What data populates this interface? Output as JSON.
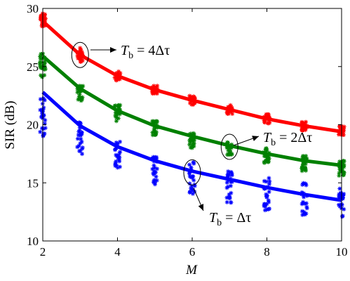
{
  "chart_data": {
    "type": "line",
    "xlabel": "M",
    "ylabel": "SIR (dB)",
    "xlim": [
      2,
      10
    ],
    "ylim": [
      10,
      30
    ],
    "xticks": [
      2,
      4,
      6,
      8,
      10
    ],
    "yticks": [
      10,
      15,
      20,
      25,
      30
    ],
    "x": [
      2,
      3,
      4,
      5,
      6,
      7,
      8,
      9,
      10
    ],
    "grid": false,
    "series": [
      {
        "color": "#ff0000",
        "values": [
          28.9,
          26.0,
          24.2,
          23.0,
          22.1,
          21.3,
          20.5,
          19.9,
          19.4
        ],
        "scatter": [
          [
            28.3,
            29.6
          ],
          [
            25.4,
            26.6
          ],
          [
            23.8,
            24.6
          ],
          [
            22.6,
            23.4
          ],
          [
            21.7,
            22.5
          ],
          [
            20.9,
            21.7
          ],
          [
            20.1,
            20.9
          ],
          [
            19.5,
            20.3
          ],
          [
            19.0,
            19.9
          ]
        ]
      },
      {
        "color": "#008000",
        "values": [
          25.9,
          23.1,
          21.2,
          19.9,
          19.0,
          18.2,
          17.5,
          16.9,
          16.5
        ],
        "scatter": [
          [
            24.1,
            26.2
          ],
          [
            21.9,
            23.5
          ],
          [
            20.3,
            21.7
          ],
          [
            19.0,
            20.4
          ],
          [
            18.0,
            19.3
          ],
          [
            17.4,
            18.6
          ],
          [
            16.7,
            18.0
          ],
          [
            16.0,
            17.4
          ],
          [
            15.6,
            16.9
          ]
        ]
      },
      {
        "color": "#0000ff",
        "values": [
          22.8,
          19.9,
          18.1,
          16.9,
          16.0,
          15.3,
          14.6,
          14.0,
          13.5
        ],
        "scatter": [
          [
            19.0,
            22.4
          ],
          [
            17.4,
            20.4
          ],
          [
            16.3,
            18.6
          ],
          [
            14.8,
            17.3
          ],
          [
            14.0,
            16.9
          ],
          [
            13.2,
            16.2
          ],
          [
            12.6,
            15.6
          ],
          [
            12.0,
            15.0
          ],
          [
            11.8,
            14.5
          ]
        ]
      }
    ],
    "annotations": [
      {
        "text": "T_b = 4Δτ",
        "sub": "b",
        "rhs": " = 4Δτ",
        "target_x": 3,
        "target_y": 26.0
      },
      {
        "text": "T_b = 2Δτ",
        "sub": "b",
        "rhs": " = 2Δτ",
        "target_x": 7,
        "target_y": 18.1
      },
      {
        "text": "T_b = Δτ",
        "sub": "b",
        "rhs": " = Δτ",
        "target_x": 6,
        "target_y": 15.9
      }
    ]
  }
}
